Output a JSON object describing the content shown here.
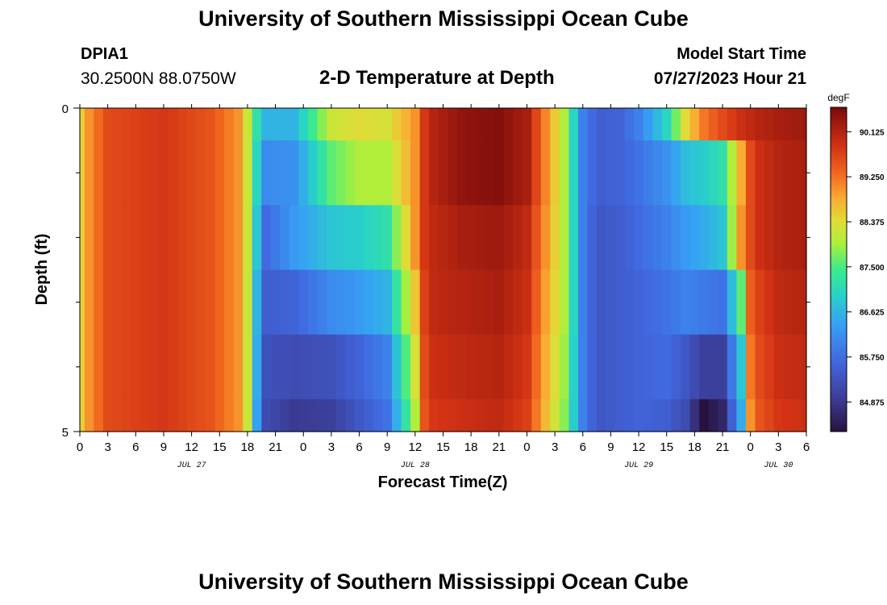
{
  "header": {
    "title": "University of Southern Mississippi Ocean Cube",
    "station": "DPIA1",
    "coords": "30.2500N  88.0750W",
    "chart_title": "2-D Temperature at Depth",
    "model_label": "Model Start Time",
    "model_time": "07/27/2023 Hour 21"
  },
  "footer": {
    "title": "University of Southern Mississippi Ocean Cube"
  },
  "chart_data": {
    "type": "heatmap",
    "title": "2-D Temperature at Depth",
    "xlabel": "Forecast Time(Z)",
    "ylabel": "Depth (ft)",
    "colorbar_label": "degF",
    "colorbar_ticks": [
      "90.125",
      "89.250",
      "88.375",
      "87.500",
      "86.625",
      "85.750",
      "84.875"
    ],
    "colorbar_tick_values": [
      90.125,
      89.25,
      88.375,
      87.5,
      86.625,
      85.75,
      84.875
    ],
    "vmin": 84.3,
    "vmax": 90.6,
    "x_tick_labels": [
      "0",
      "3",
      "6",
      "9",
      "12",
      "15",
      "18",
      "21",
      "0",
      "3",
      "6",
      "9",
      "12",
      "15",
      "18",
      "21",
      "0",
      "3",
      "6",
      "9",
      "12",
      "15",
      "18",
      "21",
      "0",
      "3",
      "6"
    ],
    "x_range_hours": [
      0,
      78
    ],
    "day_labels": [
      {
        "label": "JUL 27",
        "hour": 12
      },
      {
        "label": "JUL 28",
        "hour": 36
      },
      {
        "label": "JUL 29",
        "hour": 60
      },
      {
        "label": "JUL 30",
        "hour": 75
      }
    ],
    "y_tick_labels": [
      "0",
      "5"
    ],
    "y_range": [
      0,
      5
    ],
    "depth_levels_ft": [
      0,
      1,
      2,
      3,
      4,
      5
    ],
    "time_step_hours": 1,
    "keyframes": {
      "hours": [
        0,
        1,
        3,
        9,
        14,
        17,
        18,
        19,
        20,
        23,
        27,
        30,
        33,
        36,
        37,
        38,
        41,
        45,
        48,
        50,
        52,
        54,
        55,
        56,
        58,
        60,
        63,
        65,
        67,
        69,
        71,
        72,
        73,
        75,
        78
      ],
      "depth_0": [
        88.5,
        89.0,
        89.6,
        89.8,
        89.5,
        89.0,
        88.2,
        87.2,
        86.6,
        86.6,
        88.2,
        88.4,
        88.3,
        89.0,
        89.8,
        90.1,
        90.4,
        90.5,
        90.2,
        89.1,
        88.0,
        86.0,
        85.7,
        85.5,
        85.6,
        86.0,
        87.0,
        88.4,
        89.2,
        89.6,
        89.9,
        90.0,
        90.1,
        90.2,
        90.3
      ],
      "depth_1": [
        88.5,
        89.0,
        89.6,
        89.8,
        89.5,
        89.0,
        88.2,
        87.0,
        86.1,
        86.2,
        87.6,
        88.0,
        88.0,
        89.0,
        89.8,
        90.1,
        90.4,
        90.5,
        90.2,
        89.1,
        88.0,
        86.0,
        85.7,
        85.5,
        85.6,
        85.8,
        86.2,
        86.7,
        86.9,
        87.2,
        88.8,
        89.6,
        89.9,
        90.1,
        90.2
      ],
      "depth_2": [
        88.5,
        89.0,
        89.6,
        89.8,
        89.5,
        89.0,
        88.2,
        86.8,
        85.7,
        86.3,
        86.8,
        86.9,
        87.2,
        89.0,
        89.8,
        90.0,
        90.2,
        90.3,
        90.0,
        89.0,
        88.0,
        86.0,
        85.6,
        85.4,
        85.5,
        85.7,
        86.0,
        86.3,
        86.5,
        86.8,
        89.0,
        89.6,
        89.9,
        90.1,
        90.2
      ],
      "depth_3": [
        88.5,
        89.0,
        89.6,
        89.8,
        89.5,
        89.0,
        88.2,
        86.6,
        85.5,
        85.6,
        86.1,
        86.3,
        86.6,
        88.6,
        89.7,
        90.0,
        90.1,
        90.2,
        89.9,
        88.9,
        88.0,
        86.0,
        85.6,
        85.4,
        85.5,
        85.6,
        85.8,
        86.0,
        85.9,
        85.8,
        87.6,
        89.4,
        89.7,
        90.0,
        90.1
      ],
      "depth_4": [
        88.5,
        89.0,
        89.6,
        89.8,
        89.5,
        89.0,
        88.2,
        86.5,
        85.3,
        85.2,
        85.3,
        85.6,
        86.0,
        88.3,
        89.6,
        89.9,
        90.0,
        90.1,
        89.8,
        88.8,
        87.9,
        86.0,
        85.6,
        85.4,
        85.5,
        85.6,
        85.7,
        85.4,
        85.0,
        85.0,
        86.8,
        89.2,
        89.6,
        89.9,
        90.0
      ],
      "depth_5": [
        88.5,
        89.0,
        89.6,
        89.8,
        89.5,
        89.0,
        88.2,
        86.4,
        85.2,
        84.9,
        85.0,
        85.4,
        85.8,
        88.0,
        89.5,
        89.8,
        89.9,
        90.0,
        89.7,
        88.7,
        87.8,
        86.0,
        85.6,
        85.4,
        85.5,
        85.6,
        85.5,
        85.2,
        84.3,
        84.6,
        86.5,
        89.0,
        89.5,
        89.8,
        89.9
      ]
    }
  }
}
